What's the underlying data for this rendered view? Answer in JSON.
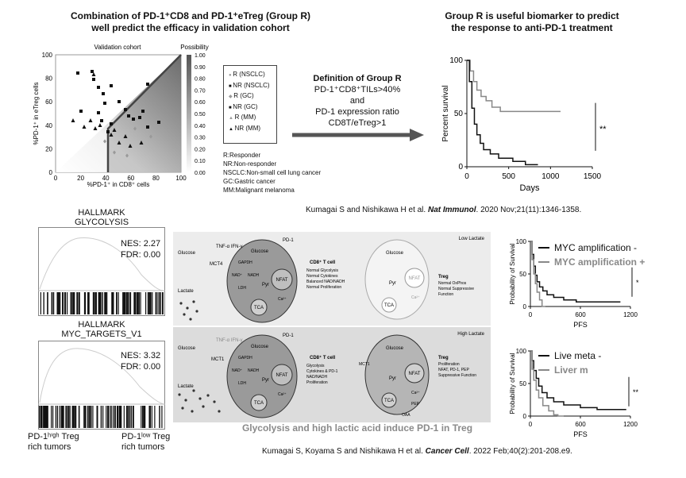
{
  "panel_top_left": {
    "title": [
      "Combination of PD-1⁺CD8 and PD-1⁺eTreg (Group R)",
      "well predict the efficacy in validation cohort"
    ],
    "plot_title": "Validation cohort",
    "possibility_label": "Possibility",
    "xlabel": "%PD-1⁺ in CD8⁺ cells",
    "ylabel": "%PD-1⁺ in eTreg cells",
    "x_ticks": [
      "0",
      "20",
      "40",
      "60",
      "80",
      "100"
    ],
    "y_ticks": [
      "0",
      "20",
      "40",
      "60",
      "80",
      "100"
    ],
    "colorbar_ticks": [
      "1.00",
      "0.90",
      "0.80",
      "0.70",
      "0.60",
      "0.50",
      "0.40",
      "0.30",
      "0.20",
      "0.10",
      "0.00"
    ],
    "legend": [
      "R (NSCLC)",
      "NR (NSCLC)",
      "R (GC)",
      "NR (GC)",
      "R (MM)",
      "NR (MM)"
    ],
    "abbreviations": [
      "R:Responder",
      "NR:Non-responder",
      "NSCLC:Non-small cell lung cancer",
      "GC:Gastric cancer",
      "MM:Malignant melanoma"
    ]
  },
  "definition": {
    "title": "Definition of Group R",
    "lines": [
      "PD-1⁺CD8⁺TILs>40%",
      "and",
      "PD-1 expression ratio",
      "CD8T/eTreg>1"
    ]
  },
  "panel_top_right": {
    "title": [
      "Group R is useful biomarker to predict",
      "the response to anti-PD-1 treatment"
    ],
    "ylabel": "Percent survival",
    "xlabel": "Days",
    "x_ticks": [
      "0",
      "500",
      "1000",
      "1500"
    ],
    "y_ticks": [
      "0",
      "50",
      "100"
    ],
    "significance": "**"
  },
  "citation_top": {
    "authors": "Kumagai S and Nishikawa H et al. ",
    "journal": "Nat Immunol",
    "rest": ". 2020 Nov;21(11):1346-1358."
  },
  "gsea": [
    {
      "title": [
        "HALLMARK",
        "GLYCOLYSIS"
      ],
      "nes": "NES: 2.27",
      "fdr": "FDR: 0.00"
    },
    {
      "title": [
        "HALLMARK",
        "MYC_TARGETS_V1"
      ],
      "nes": "NES: 3.32",
      "fdr": "FDR: 0.00"
    }
  ],
  "gsea_labels": {
    "left": [
      "PD-1ʰⁱᵍʰ Treg",
      "rich tumors"
    ],
    "right": [
      "PD-1ˡᵒʷ Treg",
      "rich tumors"
    ]
  },
  "schematic": {
    "caption": "Glycolysis and high lactic acid induce PD-1 in Treg",
    "top": {
      "condition": "Low Lactate",
      "inputs": [
        "Glucose",
        "Lactate"
      ],
      "cytokines": "TNF-α\nIFN-γ",
      "transporter": "MCT4",
      "pd1": "PD-1",
      "cd8_cell": {
        "title": "CD8⁺ T cell",
        "notes": [
          "Normal Glycolysis",
          "Normal Cytokines",
          "Balanced NAD/NADH",
          "Normal Proliferation"
        ],
        "glucose": "Glucose",
        "gapdh": "GAPDH",
        "nad": "NAD⁺",
        "nadh": "NADH",
        "pyr": "Pyr",
        "ldh": "LDH",
        "tca": "TCA",
        "nfat": "NFAT",
        "ca": "Ca²⁺"
      },
      "treg_cell": {
        "title": "Treg",
        "notes": [
          "Normal OxPhos",
          "Normal Suppressive",
          "Function"
        ],
        "glucose": "Glucose",
        "pyr": "Pyr",
        "tca": "TCA",
        "nfat": "NFAT",
        "ca": "Ca²⁺"
      }
    },
    "bottom": {
      "condition": "High Lactate",
      "inputs": [
        "Glucose",
        "Lactate"
      ],
      "cytokines": "TNF-α\nIFN-γ",
      "transporter": "MCT1",
      "pd1": "PD-1",
      "cd8_cell": {
        "title": "CD8⁺ T cell",
        "notes": [
          "Glycolysis",
          "Cytokines & PD-1",
          "NAD/NADH",
          "Proliferation"
        ],
        "glucose": "Glucose",
        "gapdh": "GAPDH",
        "nad": "NAD⁺",
        "nadh": "NADH",
        "pyr": "Pyr",
        "ldh": "LDH",
        "tca": "TCA",
        "nfat": "NFAT",
        "ca": "Ca²⁺"
      },
      "treg_cell": {
        "title": "Treg",
        "notes": [
          "Proliferation",
          "NFAT, PD-1, PEP",
          "Suppressive Function"
        ],
        "glucose": "Glucose",
        "pyr": "Pyr",
        "tca": "TCA",
        "nfat": "NFAT",
        "ca": "Ca²⁺",
        "pep": "PEP",
        "oaa": "OAA",
        "mct": "MCT1"
      }
    }
  },
  "km_right": [
    {
      "legend": [
        "MYC amplification -",
        "MYC amplification +"
      ],
      "ylabel": "Probability of Survival",
      "xlabel": "PFS",
      "x_ticks": [
        "0",
        "600",
        "1200"
      ],
      "y_ticks": [
        "0",
        "50",
        "100"
      ],
      "significance": "*"
    },
    {
      "legend": [
        "Live meta -",
        "Liver m"
      ],
      "ylabel": "Probability of Survival",
      "xlabel": "PFS",
      "x_ticks": [
        "0",
        "600",
        "1200"
      ],
      "y_ticks": [
        "0",
        "50",
        "100"
      ],
      "significance": "**"
    }
  ],
  "citation_bottom": {
    "authors": "Kumagai S, Koyama S and Nishikawa H et al. ",
    "journal": "Cancer Cell",
    "rest": ". 2022 Feb;40(2):201-208.e9."
  },
  "colors": {
    "black": "#111111",
    "gray": "#8a8a8a",
    "arrow": "#555555",
    "schematic_bg": "#e6e6e6"
  }
}
